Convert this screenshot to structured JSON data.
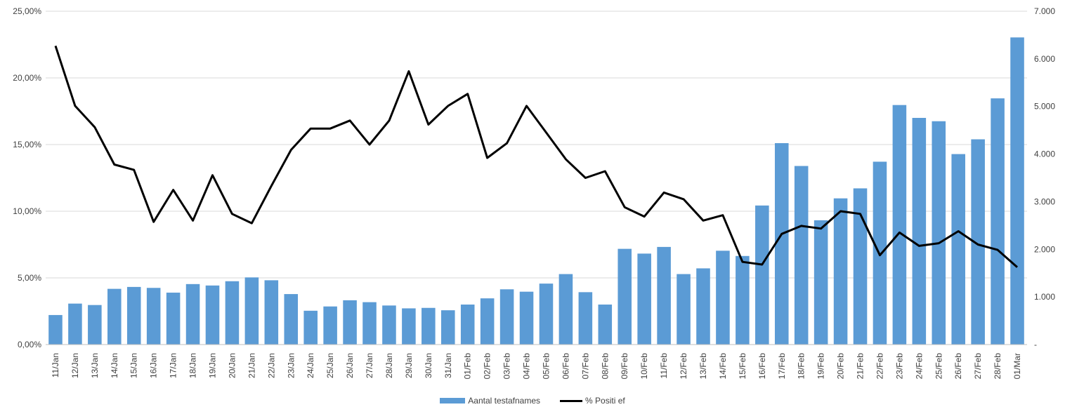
{
  "chart_data": {
    "type": "bar",
    "categories": [
      "11/Jan",
      "12/Jan",
      "13/Jan",
      "14/Jan",
      "15/Jan",
      "16/Jan",
      "17/Jan",
      "18/Jan",
      "19/Jan",
      "20/Jan",
      "21/Jan",
      "22/Jan",
      "23/Jan",
      "24/Jan",
      "25/Jan",
      "26/Jan",
      "27/Jan",
      "28/Jan",
      "29/Jan",
      "30/Jan",
      "31/Jan",
      "01/Feb",
      "02/Feb",
      "03/Feb",
      "04/Feb",
      "05/Feb",
      "06/Feb",
      "07/Feb",
      "08/Feb",
      "09/Feb",
      "10/Feb",
      "11/Feb",
      "12/Feb",
      "13/Feb",
      "14/Feb",
      "15/Feb",
      "16/Feb",
      "17/Feb",
      "18/Feb",
      "19/Feb",
      "20/Feb",
      "21/Feb",
      "22/Feb",
      "23/Feb",
      "24/Feb",
      "25/Feb",
      "26/Feb",
      "27/Feb",
      "28/Feb",
      "01/Mar"
    ],
    "series": [
      {
        "name": "Aantal testafnames",
        "kind": "bar",
        "axis": "right",
        "color": "#5b9bd5",
        "values": [
          620,
          860,
          830,
          1170,
          1210,
          1190,
          1090,
          1270,
          1240,
          1330,
          1410,
          1350,
          1060,
          710,
          800,
          930,
          890,
          820,
          760,
          770,
          720,
          840,
          970,
          1160,
          1110,
          1280,
          1480,
          1100,
          840,
          2010,
          1910,
          2050,
          1480,
          1600,
          1970,
          1860,
          2920,
          4230,
          3750,
          2610,
          3070,
          3280,
          3840,
          5030,
          4760,
          4690,
          4000,
          4310,
          5170,
          6450
        ]
      },
      {
        "name": "% Positief",
        "kind": "line",
        "axis": "left",
        "color": "#000000",
        "values": [
          22.4,
          17.9,
          16.3,
          13.5,
          13.1,
          9.2,
          11.6,
          9.3,
          12.7,
          9.8,
          9.1,
          11.9,
          14.6,
          16.2,
          16.2,
          16.8,
          15.0,
          16.8,
          20.5,
          16.5,
          17.9,
          18.8,
          14.0,
          15.1,
          17.9,
          15.9,
          13.9,
          12.5,
          13.0,
          10.3,
          9.6,
          11.4,
          10.9,
          9.3,
          9.7,
          6.2,
          6.0,
          8.3,
          8.9,
          8.7,
          10.0,
          9.8,
          6.7,
          8.4,
          7.4,
          7.6,
          8.5,
          7.5,
          7.1,
          5.8
        ]
      }
    ],
    "y_left": {
      "ylim": [
        0,
        25
      ],
      "ticks": [
        "0,00%",
        "5,00%",
        "10,00%",
        "15,00%",
        "20,00%",
        "25,00%"
      ]
    },
    "y_right": {
      "ylim": [
        0,
        7000
      ],
      "ticks": [
        "-",
        "1.000",
        "2.000",
        "3.000",
        "4.000",
        "5.000",
        "6.000",
        "7.000"
      ]
    },
    "grid": true,
    "legend_position": "bottom"
  },
  "legend": {
    "bar_label": "Aantal testafnames",
    "line_label": "% Positi ef"
  }
}
